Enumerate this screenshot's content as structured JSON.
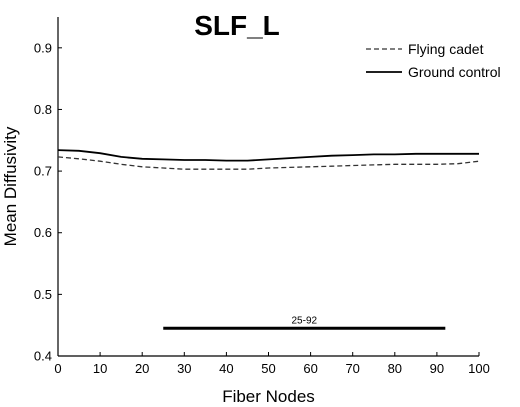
{
  "chart_data": {
    "type": "line",
    "title": "SLF_L",
    "xlabel": "Fiber Nodes",
    "ylabel": "Mean Diffusivity",
    "xlim": [
      0,
      100
    ],
    "ylim": [
      0.4,
      0.95
    ],
    "xticks": [
      0,
      10,
      20,
      30,
      40,
      50,
      60,
      70,
      80,
      90,
      100
    ],
    "yticks": [
      0.4,
      0.5,
      0.6,
      0.7,
      0.8,
      0.9
    ],
    "ytick_labels": [
      "0.4",
      "0.5",
      "0.6",
      "0.7",
      "0.8",
      "0.9"
    ],
    "grid": false,
    "legend_position": "top-right",
    "series": [
      {
        "name": "Flying cadet",
        "style": "dashed",
        "color": "#333333",
        "x": [
          0,
          5,
          10,
          15,
          20,
          25,
          30,
          35,
          40,
          45,
          50,
          55,
          60,
          65,
          70,
          75,
          80,
          85,
          90,
          95,
          100
        ],
        "y": [
          0.723,
          0.72,
          0.716,
          0.711,
          0.707,
          0.705,
          0.703,
          0.703,
          0.703,
          0.703,
          0.705,
          0.706,
          0.707,
          0.708,
          0.709,
          0.71,
          0.711,
          0.711,
          0.711,
          0.712,
          0.716
        ]
      },
      {
        "name": "Ground control",
        "style": "solid",
        "color": "#000000",
        "x": [
          0,
          5,
          10,
          15,
          20,
          25,
          30,
          35,
          40,
          45,
          50,
          55,
          60,
          65,
          70,
          75,
          80,
          85,
          90,
          95,
          100
        ],
        "y": [
          0.734,
          0.733,
          0.729,
          0.723,
          0.72,
          0.719,
          0.718,
          0.718,
          0.717,
          0.717,
          0.719,
          0.721,
          0.723,
          0.725,
          0.726,
          0.727,
          0.727,
          0.728,
          0.728,
          0.728,
          0.728
        ]
      }
    ],
    "annotations": [
      {
        "type": "significance-bar",
        "x_start": 25,
        "x_end": 92,
        "y": 0.445,
        "label": "25-92"
      }
    ]
  }
}
